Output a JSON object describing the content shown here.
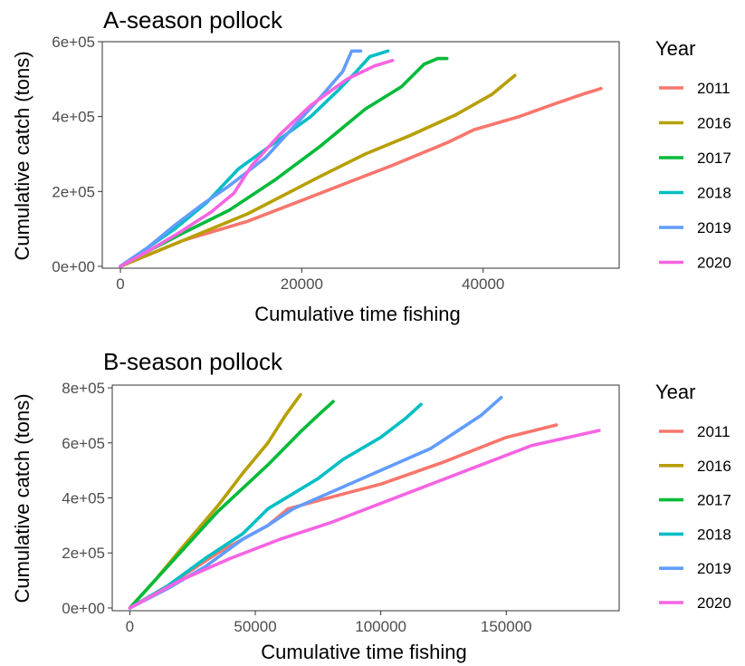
{
  "chart_data": [
    {
      "type": "line",
      "title": "A-season pollock",
      "xlabel": "Cumulative time fishing",
      "ylabel": "Cumulative catch (tons)",
      "xlim": [
        -2000,
        55000
      ],
      "ylim": [
        -5000,
        600000
      ],
      "x_ticks": [
        0,
        20000,
        40000
      ],
      "x_tick_labels": [
        "0",
        "20000",
        "40000"
      ],
      "y_ticks": [
        0,
        200000,
        400000,
        600000
      ],
      "y_tick_labels": [
        "0e+00",
        "2e+05",
        "4e+05",
        "6e+05"
      ],
      "grid": false,
      "legend": {
        "title": "Year",
        "placement": "right"
      },
      "series": [
        {
          "name": "2011",
          "color": "#F8766D",
          "points": [
            [
              0,
              0
            ],
            [
              2500,
              25000
            ],
            [
              7000,
              70000
            ],
            [
              14000,
              120000
            ],
            [
              22000,
              195000
            ],
            [
              30000,
              270000
            ],
            [
              36000,
              330000
            ],
            [
              39000,
              365000
            ],
            [
              44000,
              400000
            ],
            [
              48000,
              435000
            ],
            [
              51000,
              460000
            ],
            [
              53000,
              475000
            ]
          ]
        },
        {
          "name": "2016",
          "color": "#B79F00",
          "points": [
            [
              0,
              0
            ],
            [
              3000,
              30000
            ],
            [
              7000,
              70000
            ],
            [
              14000,
              140000
            ],
            [
              22000,
              240000
            ],
            [
              27000,
              300000
            ],
            [
              32000,
              350000
            ],
            [
              37000,
              405000
            ],
            [
              41000,
              460000
            ],
            [
              43500,
              510000
            ]
          ]
        },
        {
          "name": "2017",
          "color": "#00BA38",
          "points": [
            [
              0,
              0
            ],
            [
              3000,
              40000
            ],
            [
              7000,
              90000
            ],
            [
              12000,
              150000
            ],
            [
              17000,
              230000
            ],
            [
              22000,
              320000
            ],
            [
              27000,
              420000
            ],
            [
              31000,
              480000
            ],
            [
              33500,
              540000
            ],
            [
              35000,
              555000
            ],
            [
              36000,
              555000
            ]
          ]
        },
        {
          "name": "2018",
          "color": "#00BFC4",
          "points": [
            [
              0,
              0
            ],
            [
              3000,
              50000
            ],
            [
              6000,
              100000
            ],
            [
              9500,
              170000
            ],
            [
              13000,
              260000
            ],
            [
              17000,
              330000
            ],
            [
              21000,
              400000
            ],
            [
              24000,
              470000
            ],
            [
              26000,
              520000
            ],
            [
              27500,
              560000
            ],
            [
              29500,
              575000
            ]
          ]
        },
        {
          "name": "2019",
          "color": "#619CFF",
          "points": [
            [
              0,
              0
            ],
            [
              3000,
              50000
            ],
            [
              6000,
              110000
            ],
            [
              9000,
              165000
            ],
            [
              12000,
              215000
            ],
            [
              16000,
              290000
            ],
            [
              19000,
              370000
            ],
            [
              22000,
              450000
            ],
            [
              24500,
              520000
            ],
            [
              25500,
              575000
            ],
            [
              26500,
              575000
            ]
          ]
        },
        {
          "name": "2020",
          "color": "#F564E3",
          "points": [
            [
              0,
              0
            ],
            [
              3000,
              40000
            ],
            [
              6500,
              90000
            ],
            [
              10000,
              145000
            ],
            [
              12500,
              195000
            ],
            [
              14500,
              270000
            ],
            [
              17500,
              350000
            ],
            [
              21000,
              430000
            ],
            [
              25000,
              500000
            ],
            [
              28000,
              535000
            ],
            [
              30000,
              550000
            ]
          ]
        }
      ]
    },
    {
      "type": "line",
      "title": "B-season pollock",
      "xlabel": "Cumulative time fishing",
      "ylabel": "Cumulative catch (tons)",
      "xlim": [
        -7000,
        195000
      ],
      "ylim": [
        -10000,
        810000
      ],
      "x_ticks": [
        0,
        50000,
        100000,
        150000
      ],
      "x_tick_labels": [
        "0",
        "50000",
        "100000",
        "150000"
      ],
      "y_ticks": [
        0,
        200000,
        400000,
        600000,
        800000
      ],
      "y_tick_labels": [
        "0e+00",
        "2e+05",
        "4e+05",
        "6e+05",
        "8e+05"
      ],
      "grid": false,
      "legend": {
        "title": "Year",
        "placement": "right"
      },
      "series": [
        {
          "name": "2011",
          "color": "#F8766D",
          "points": [
            [
              0,
              0
            ],
            [
              15000,
              80000
            ],
            [
              35000,
              200000
            ],
            [
              55000,
              300000
            ],
            [
              63000,
              360000
            ],
            [
              75000,
              390000
            ],
            [
              100000,
              450000
            ],
            [
              125000,
              530000
            ],
            [
              150000,
              620000
            ],
            [
              170000,
              665000
            ]
          ]
        },
        {
          "name": "2016",
          "color": "#B79F00",
          "points": [
            [
              0,
              0
            ],
            [
              10000,
              100000
            ],
            [
              20000,
              210000
            ],
            [
              35000,
              370000
            ],
            [
              45000,
              490000
            ],
            [
              55000,
              600000
            ],
            [
              62000,
              700000
            ],
            [
              68000,
              775000
            ]
          ]
        },
        {
          "name": "2017",
          "color": "#00BA38",
          "points": [
            [
              0,
              0
            ],
            [
              10000,
              100000
            ],
            [
              20000,
              200000
            ],
            [
              35000,
              350000
            ],
            [
              55000,
              520000
            ],
            [
              68000,
              640000
            ],
            [
              75000,
              700000
            ],
            [
              81000,
              750000
            ]
          ]
        },
        {
          "name": "2018",
          "color": "#00BFC4",
          "points": [
            [
              0,
              0
            ],
            [
              15000,
              80000
            ],
            [
              30000,
              180000
            ],
            [
              45000,
              270000
            ],
            [
              55000,
              360000
            ],
            [
              75000,
              470000
            ],
            [
              85000,
              540000
            ],
            [
              100000,
              620000
            ],
            [
              110000,
              690000
            ],
            [
              116000,
              740000
            ]
          ]
        },
        {
          "name": "2019",
          "color": "#619CFF",
          "points": [
            [
              0,
              0
            ],
            [
              15000,
              70000
            ],
            [
              30000,
              150000
            ],
            [
              45000,
              250000
            ],
            [
              55000,
              300000
            ],
            [
              65000,
              360000
            ],
            [
              80000,
              420000
            ],
            [
              100000,
              500000
            ],
            [
              120000,
              580000
            ],
            [
              140000,
              700000
            ],
            [
              148000,
              765000
            ]
          ]
        },
        {
          "name": "2020",
          "color": "#F564E3",
          "points": [
            [
              0,
              0
            ],
            [
              20000,
              100000
            ],
            [
              40000,
              180000
            ],
            [
              60000,
              250000
            ],
            [
              80000,
              310000
            ],
            [
              100000,
              380000
            ],
            [
              120000,
              450000
            ],
            [
              140000,
              520000
            ],
            [
              160000,
              590000
            ],
            [
              187000,
              645000
            ]
          ]
        }
      ]
    }
  ]
}
